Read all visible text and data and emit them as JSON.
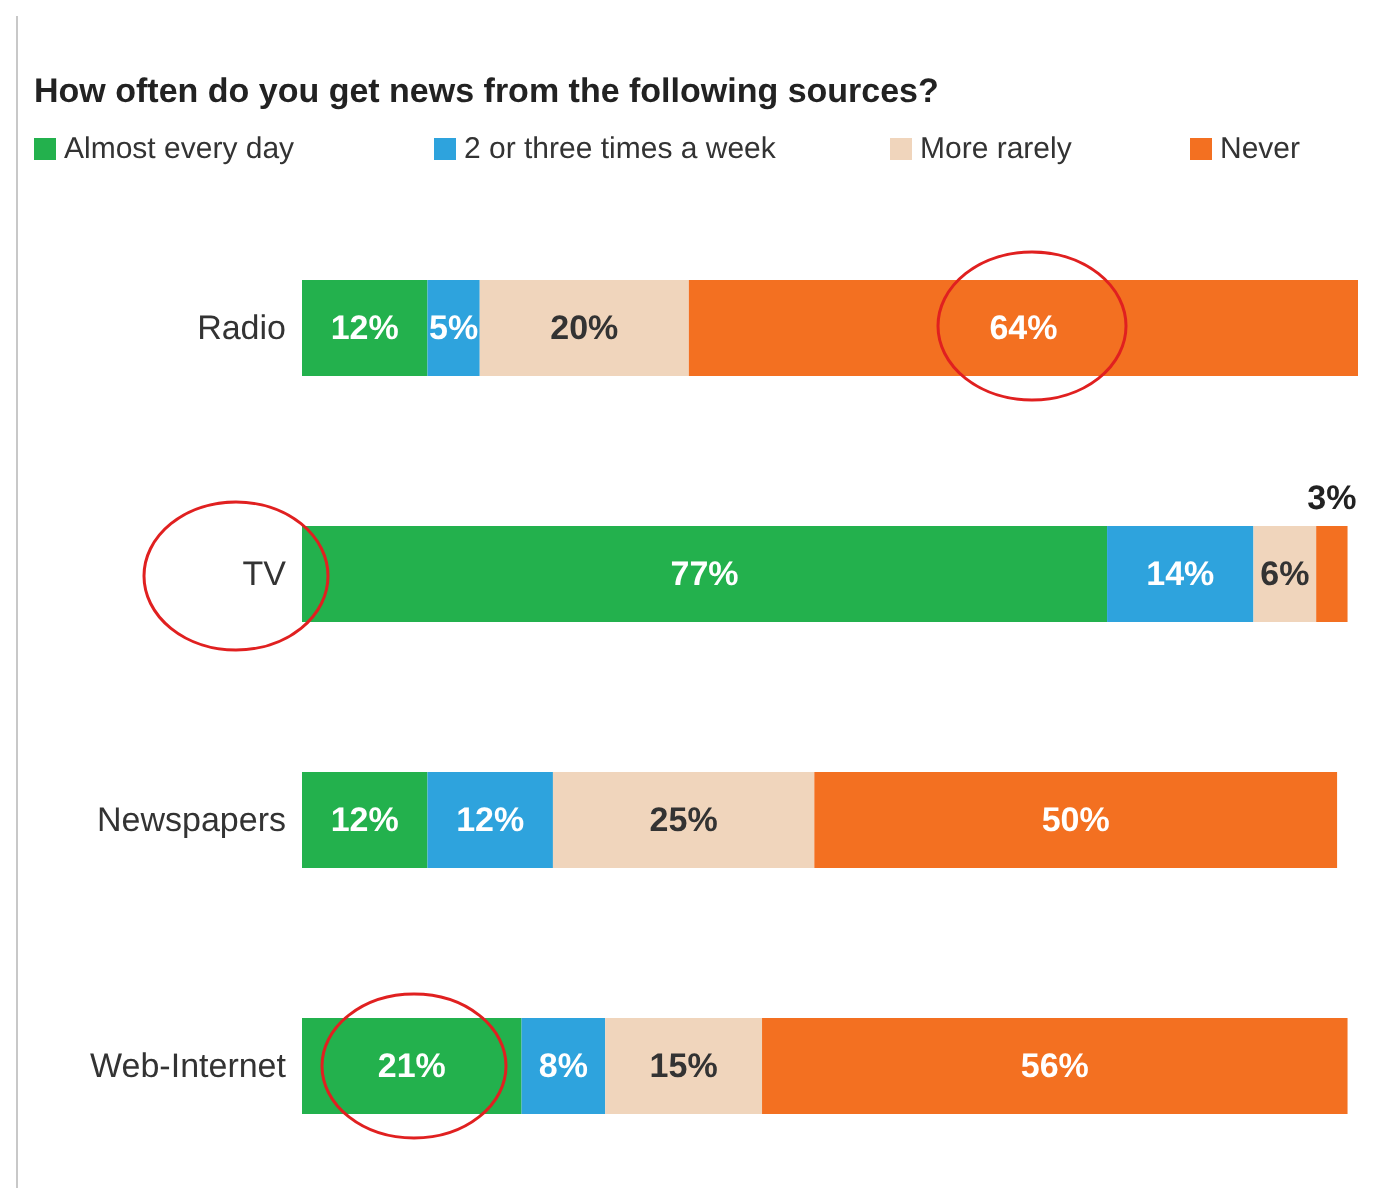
{
  "chart_data": {
    "type": "bar",
    "title": "How often do you get news from the following sources?",
    "orientation": "horizontal",
    "stacked": true,
    "xlim": [
      0,
      101
    ],
    "tick_labels": "y",
    "categories": [
      "Radio",
      "TV",
      "Newspapers",
      "Web-Internet"
    ],
    "series": [
      {
        "name": "Almost every day",
        "color": "#23b14d",
        "values": [
          12,
          77,
          12,
          21
        ],
        "value_labels": [
          "12%",
          "77%",
          "12%",
          "21%"
        ]
      },
      {
        "name": "2 or three times a week",
        "color": "#2ea3dd",
        "values": [
          5,
          14,
          12,
          8
        ],
        "value_labels": [
          "5%",
          "14%",
          "12%",
          "8%"
        ]
      },
      {
        "name": "More rarely",
        "color": "#f0d5bc",
        "values": [
          20,
          6,
          25,
          15
        ],
        "value_labels": [
          "20%",
          "6%",
          "25%",
          "15%"
        ]
      },
      {
        "name": "Never",
        "color": "#f37021",
        "values": [
          64,
          3,
          50,
          56
        ],
        "value_labels": [
          "64%",
          "3%",
          "50%",
          "56%"
        ]
      }
    ],
    "legend": "top left"
  }
}
